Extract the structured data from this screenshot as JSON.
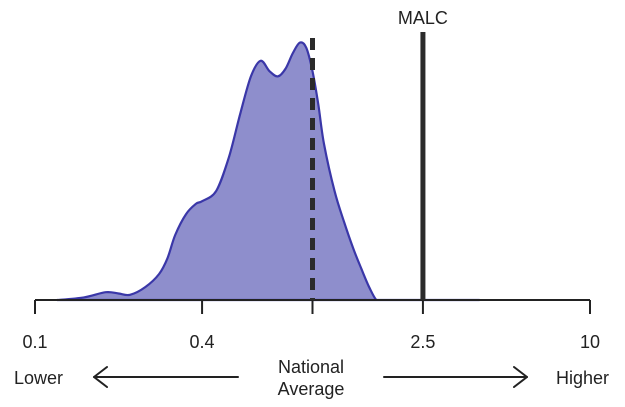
{
  "chart_data": {
    "type": "area",
    "x_scale": "log",
    "xlim": [
      0.1,
      10
    ],
    "ylim": [
      0,
      1
    ],
    "ticks": [
      0.1,
      0.4,
      2.5,
      10
    ],
    "tick_labels": [
      "0.1",
      "0.4",
      "2.5",
      "10"
    ],
    "grid": false,
    "legend": "none",
    "fill_color": "#8e8ecc",
    "line_color": "#3a37a8",
    "density": {
      "x": [
        0.12,
        0.15,
        0.18,
        0.2,
        0.22,
        0.25,
        0.28,
        0.3,
        0.32,
        0.35,
        0.38,
        0.4,
        0.45,
        0.5,
        0.55,
        0.6,
        0.65,
        0.7,
        0.75,
        0.8,
        0.85,
        0.9,
        0.95,
        1.0,
        1.05,
        1.1,
        1.2,
        1.3,
        1.4,
        1.5,
        1.6,
        1.7,
        1.8,
        2.0,
        2.2,
        2.5,
        2.8,
        3.2,
        3.6,
        4.0
      ],
      "y": [
        0.0,
        0.01,
        0.03,
        0.025,
        0.02,
        0.05,
        0.1,
        0.16,
        0.25,
        0.33,
        0.37,
        0.38,
        0.42,
        0.55,
        0.72,
        0.86,
        0.92,
        0.88,
        0.86,
        0.89,
        0.95,
        0.99,
        0.97,
        0.88,
        0.75,
        0.6,
        0.42,
        0.3,
        0.2,
        0.12,
        0.05,
        0.0,
        0.0,
        0.0,
        0.0,
        0.0,
        0.0,
        0.0,
        0.0,
        0.0
      ]
    },
    "reference_lines": [
      {
        "label": "",
        "x": 1.0,
        "style": "dashed"
      },
      {
        "label": "MALC",
        "x": 2.5,
        "style": "solid"
      }
    ],
    "annotations": {
      "lower": "Lower",
      "center": "National\nAverage",
      "higher": "Higher"
    }
  }
}
